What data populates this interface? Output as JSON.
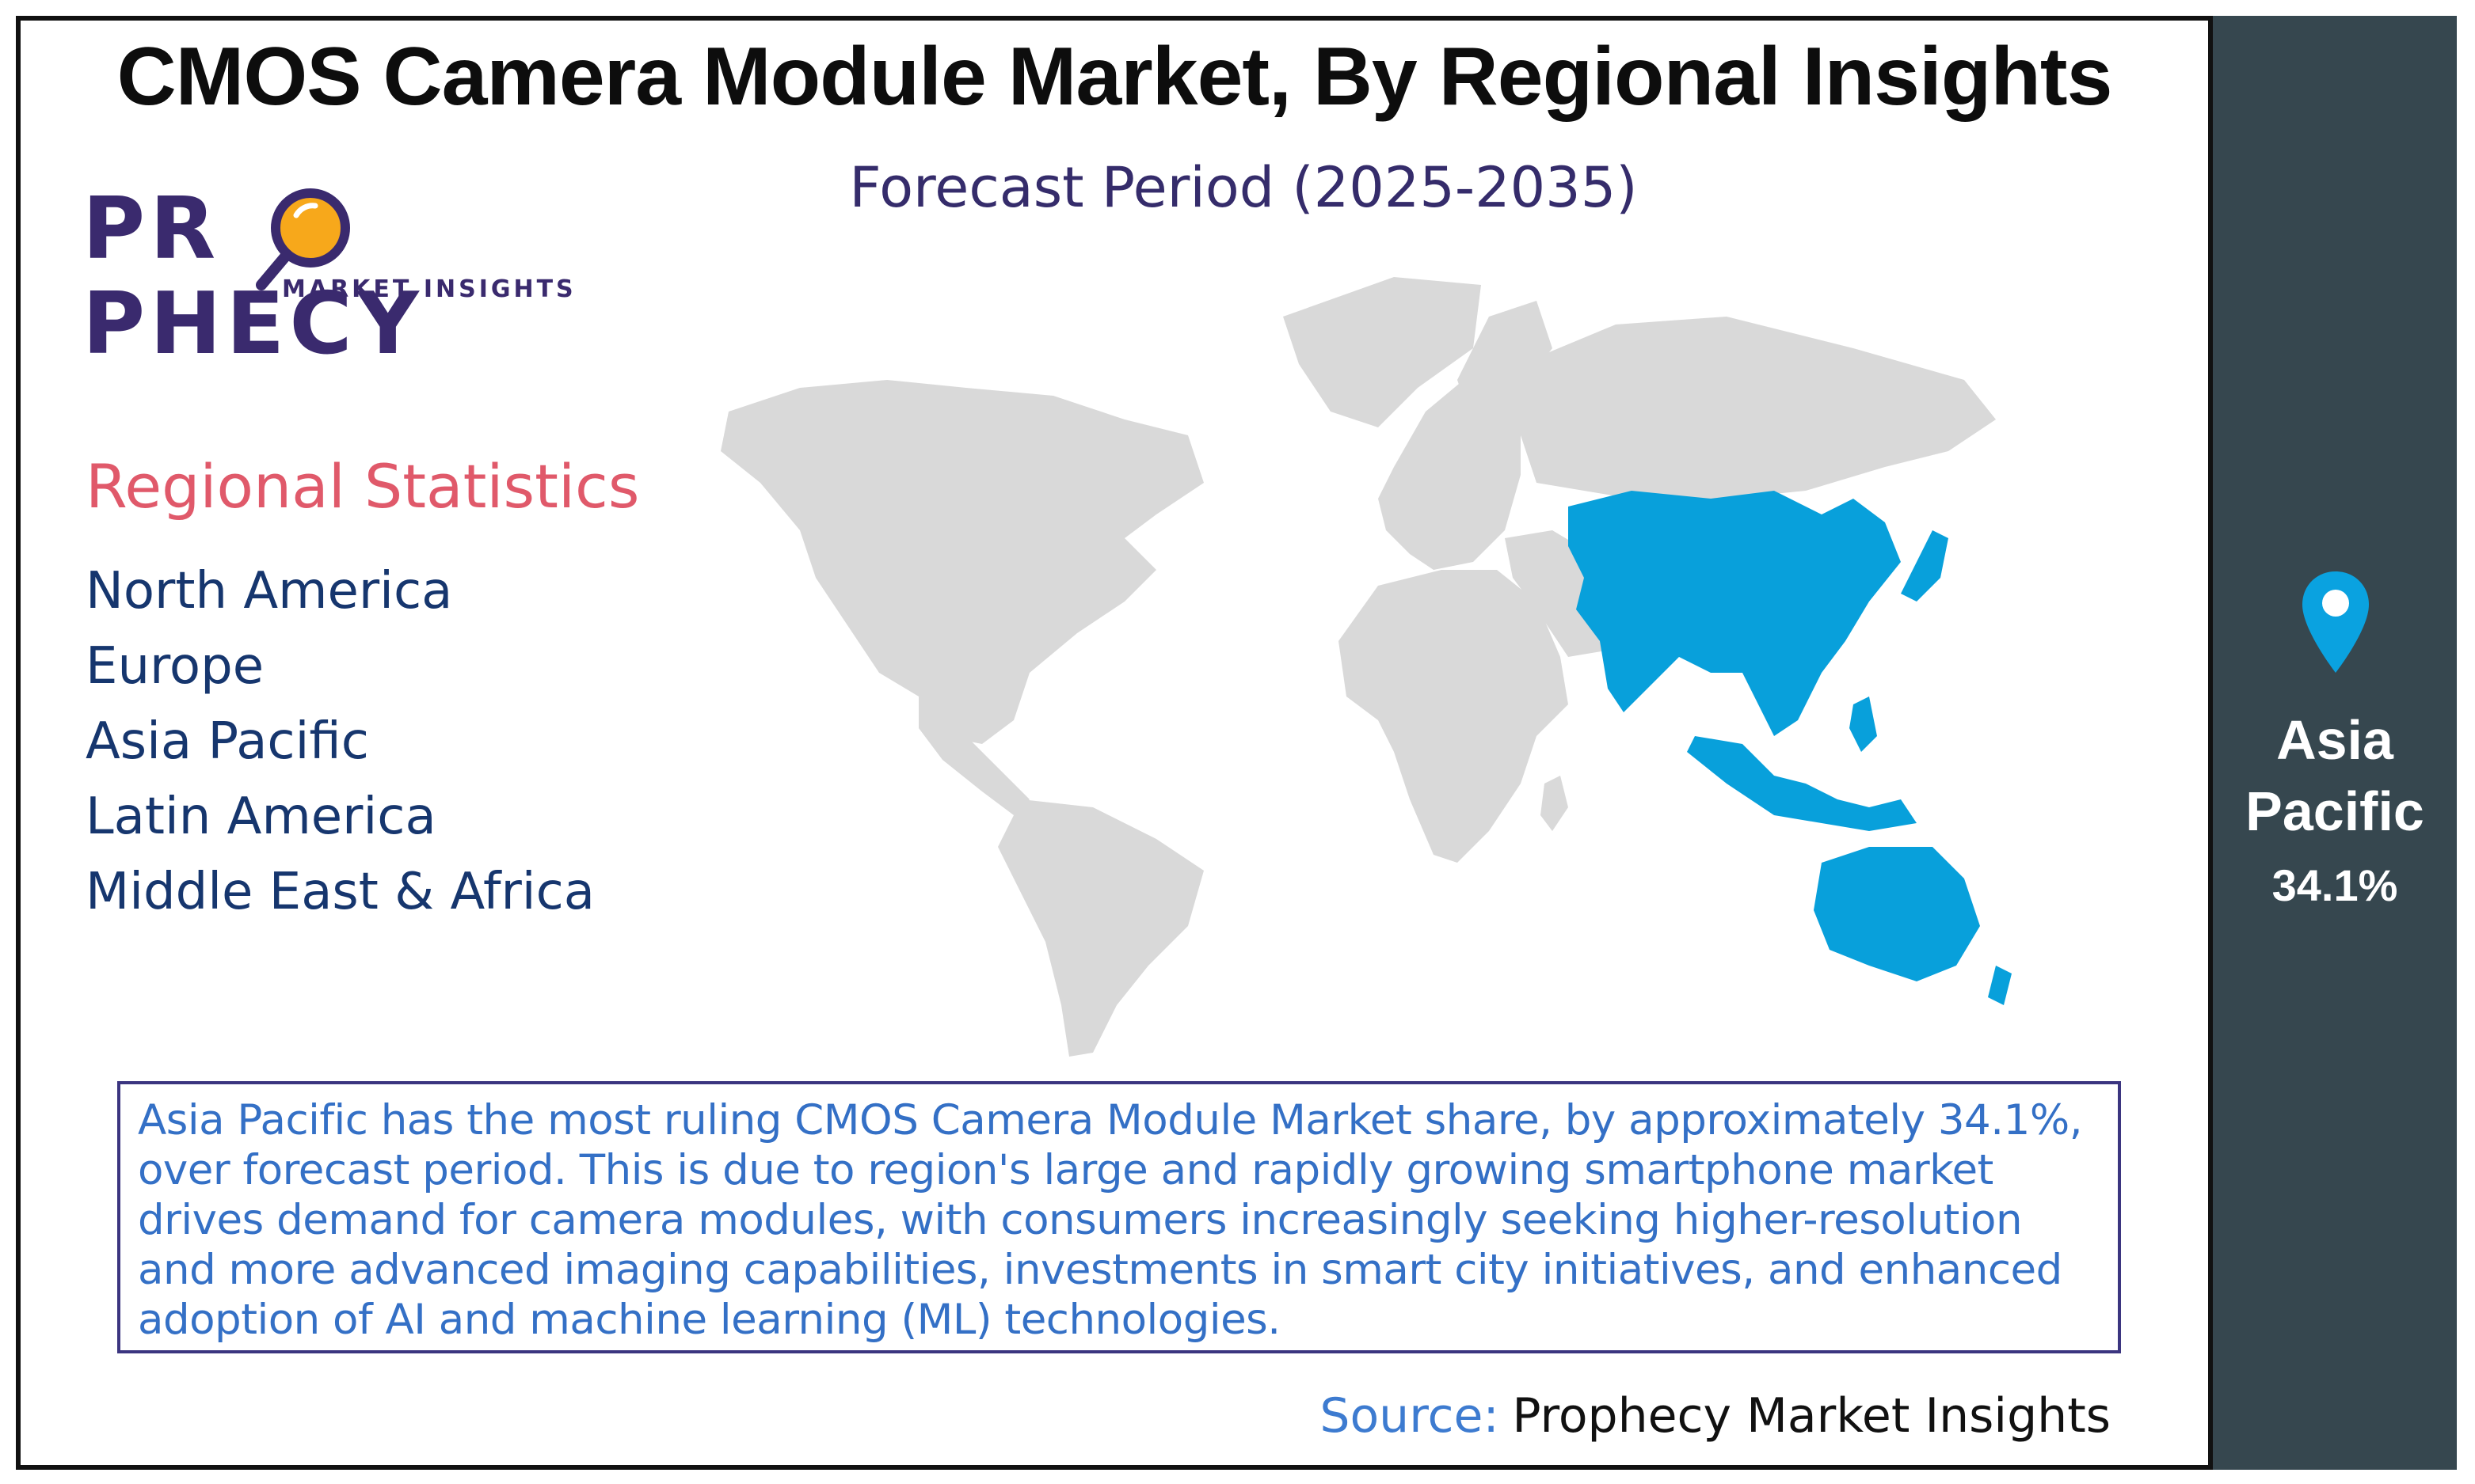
{
  "header": {
    "title": "CMOS Camera Module Market, By Regional Insights",
    "subtitle": "Forecast Period (2025-2035)"
  },
  "logo": {
    "word_left": "PR",
    "word_right": "PHECY",
    "tagline": "MARKET INSIGHTS"
  },
  "regional_statistics": {
    "heading": "Regional Statistics",
    "regions": [
      "North America",
      "Europe",
      "Asia Pacific",
      "Latin America",
      "Middle East & Africa"
    ]
  },
  "map": {
    "highlighted_region": "Asia Pacific",
    "highlight_color": "#08a0db",
    "base_color": "#d9d9d9"
  },
  "highlight_box": {
    "text": "Asia Pacific has the most ruling CMOS Camera Module Market share, by approximately 34.1%, over forecast period. This is due to  region's large and rapidly growing smartphone market drives demand for camera modules, with consumers increasingly seeking higher-resolution and more advanced imaging capabilities, investments in smart city initiatives, and enhanced adoption of AI and machine learning (ML) technologies."
  },
  "source": {
    "label": "Source:",
    "value": "Prophecy Market Insights"
  },
  "side_panel": {
    "icon": "location-pin-icon",
    "region_line1": "Asia",
    "region_line2": "Pacific",
    "share": "34.1%",
    "background_color": "#36474f",
    "pin_color": "#0aa2e0"
  }
}
